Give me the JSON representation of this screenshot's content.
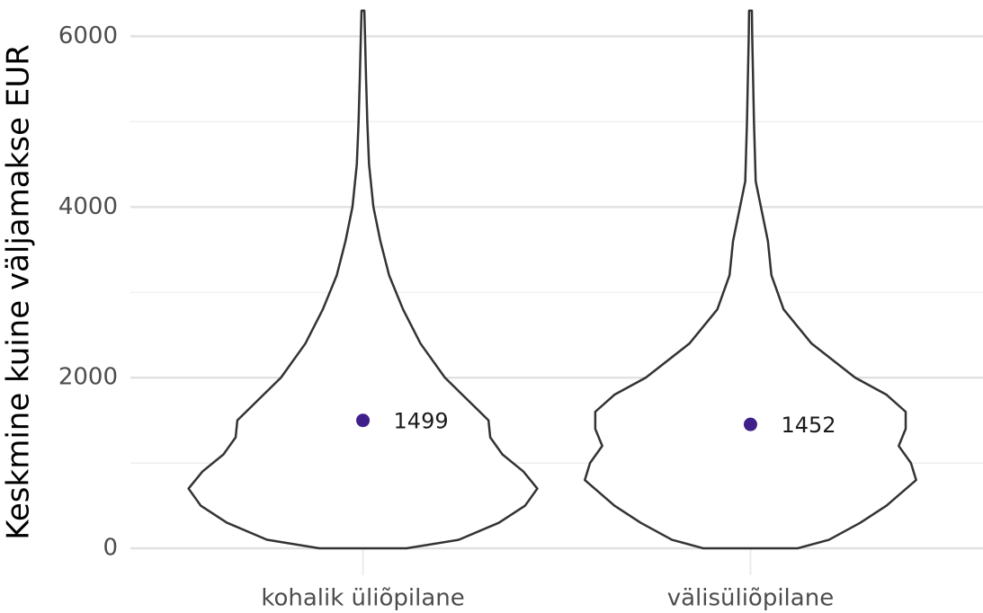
{
  "chart_data": {
    "type": "violin",
    "y_label": "Keskmine kuine väljamakse EUR",
    "categories": [
      "kohalik üliõpilane",
      "välisüliõpilane"
    ],
    "violins": [
      {
        "y": [
          0,
          100,
          300,
          500,
          700,
          900,
          1100,
          1300,
          1500,
          1700,
          2000,
          2400,
          2800,
          3200,
          3600,
          4000,
          4500,
          5000,
          5500,
          6000,
          6300
        ],
        "width": [
          0.25,
          0.55,
          0.78,
          0.93,
          1.0,
          0.92,
          0.8,
          0.73,
          0.72,
          0.62,
          0.47,
          0.33,
          0.23,
          0.15,
          0.1,
          0.06,
          0.035,
          0.025,
          0.018,
          0.012,
          0.008
        ]
      },
      {
        "y": [
          0,
          100,
          300,
          500,
          800,
          1000,
          1200,
          1400,
          1600,
          1800,
          2000,
          2400,
          2800,
          3200,
          3600,
          3900,
          4300,
          5000,
          6000,
          6300
        ],
        "width": [
          0.27,
          0.45,
          0.63,
          0.78,
          0.95,
          0.92,
          0.85,
          0.89,
          0.89,
          0.78,
          0.6,
          0.35,
          0.19,
          0.12,
          0.1,
          0.07,
          0.03,
          0.02,
          0.01,
          0.008
        ]
      }
    ],
    "means": [
      1499,
      1452
    ],
    "point_color": "#3f1f8a",
    "outline_color": "#333333",
    "ylim": [
      -105,
      6320
    ],
    "yticks": [
      0,
      2000,
      4000,
      6000
    ],
    "minor_yticks": [
      1000,
      3000,
      5000
    ],
    "grid": true
  }
}
